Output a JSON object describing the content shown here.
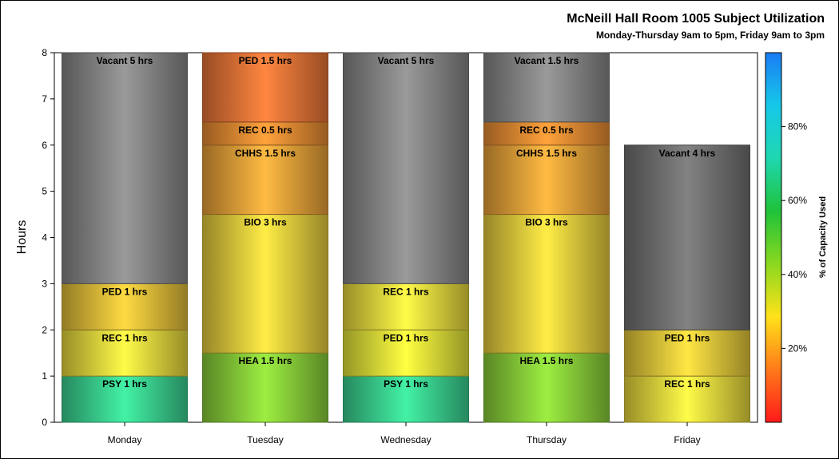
{
  "chart_data": {
    "type": "bar",
    "stacked": true,
    "title": "McNeill Hall Room 1005 Subject Utilization",
    "subtitle": "Monday-Thursday 9am to 5pm, Friday 9am to 3pm",
    "ylabel": "Hours",
    "xlabel": "",
    "ylim": [
      0,
      8
    ],
    "yticks": [
      "0",
      "1",
      "2",
      "3",
      "4",
      "5",
      "6",
      "7",
      "8"
    ],
    "categories": [
      "Monday",
      "Tuesday",
      "Wednesday",
      "Thursday",
      "Friday"
    ],
    "bars": [
      {
        "day": "Monday",
        "segments": [
          {
            "label": "PSY 1 hrs",
            "hours": 1,
            "color": "#3ddc97"
          },
          {
            "label": "REC 1 hrs",
            "hours": 1,
            "color": "#f3e441"
          },
          {
            "label": "PED 1 hrs",
            "hours": 1,
            "color": "#edc73c"
          },
          {
            "label": "Vacant 5 hrs",
            "hours": 5,
            "color": "#8c8c8c"
          }
        ]
      },
      {
        "day": "Tuesday",
        "segments": [
          {
            "label": "HEA 1.5 hrs",
            "hours": 1.5,
            "color": "#8fd83c"
          },
          {
            "label": "BIO 3 hrs",
            "hours": 3,
            "color": "#f2d740"
          },
          {
            "label": "CHHS 1.5 hrs",
            "hours": 1.5,
            "color": "#f5aa3c"
          },
          {
            "label": "REC 0.5 hrs",
            "hours": 0.5,
            "color": "#f39336"
          },
          {
            "label": "PED 1.5 hrs",
            "hours": 1.5,
            "color": "#f57a3a"
          }
        ]
      },
      {
        "day": "Wednesday",
        "segments": [
          {
            "label": "PSY 1 hrs",
            "hours": 1,
            "color": "#3ddc97"
          },
          {
            "label": "PED 1 hrs",
            "hours": 1,
            "color": "#eef03c"
          },
          {
            "label": "REC 1 hrs",
            "hours": 1,
            "color": "#f3e441"
          },
          {
            "label": "Vacant 5 hrs",
            "hours": 5,
            "color": "#8c8c8c"
          }
        ]
      },
      {
        "day": "Thursday",
        "segments": [
          {
            "label": "HEA 1.5 hrs",
            "hours": 1.5,
            "color": "#8fd83c"
          },
          {
            "label": "BIO 3 hrs",
            "hours": 3,
            "color": "#f2d740"
          },
          {
            "label": "CHHS 1.5 hrs",
            "hours": 1.5,
            "color": "#f5aa3c"
          },
          {
            "label": "REC 0.5 hrs",
            "hours": 0.5,
            "color": "#f39336"
          },
          {
            "label": "Vacant 1.5 hrs",
            "hours": 1.5,
            "color": "#8c8c8c"
          }
        ]
      },
      {
        "day": "Friday",
        "segments": [
          {
            "label": "REC 1 hrs",
            "hours": 1,
            "color": "#f3e441"
          },
          {
            "label": "PED 1 hrs",
            "hours": 1,
            "color": "#f0d23e"
          },
          {
            "label": "Vacant 4 hrs",
            "hours": 4,
            "color": "#767676"
          }
        ]
      }
    ],
    "colorbar": {
      "label": "% of Capacity Used",
      "ticks": [
        "20%",
        "40%",
        "60%",
        "80%"
      ],
      "tick_values": [
        20,
        40,
        60,
        80
      ],
      "range": [
        0,
        100
      ],
      "colors": [
        "#ff1a1a",
        "#ff7a1a",
        "#ffe21a",
        "#8ad81f",
        "#1fc23a",
        "#1fd7b0",
        "#16c8e8",
        "#1a7cf5"
      ]
    },
    "grid": false,
    "legend": "colorbar-right"
  }
}
